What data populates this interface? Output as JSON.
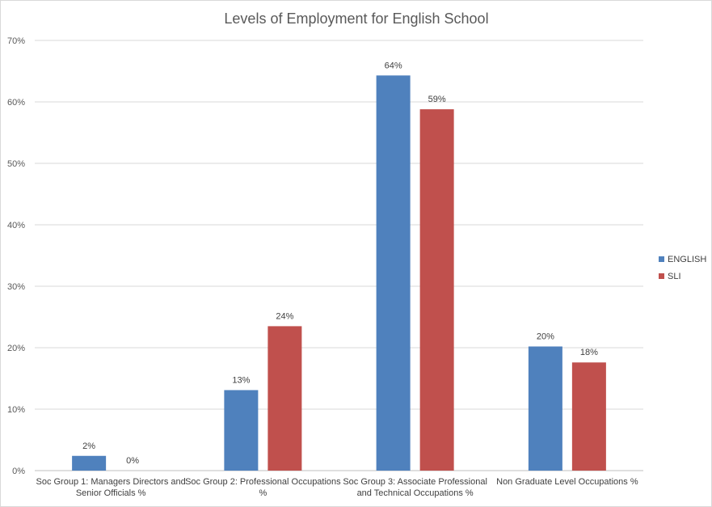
{
  "chart_data": {
    "type": "bar",
    "title": "Levels of Employment for English School",
    "xlabel": "",
    "ylabel": "",
    "ylim": [
      0,
      70
    ],
    "yticks": [
      0,
      10,
      20,
      30,
      40,
      50,
      60,
      70
    ],
    "ytick_labels": [
      "0%",
      "10%",
      "20%",
      "30%",
      "40%",
      "50%",
      "60%",
      "70%"
    ],
    "grid": true,
    "legend_position": "right",
    "categories": [
      [
        "Soc Group 1: Managers Directors and",
        "Senior Officials %"
      ],
      [
        "Soc Group 2: Professional Occupations",
        "%"
      ],
      [
        "Soc Group 3: Associate Professional",
        "and Technical Occupations %"
      ],
      [
        "Non Graduate Level Occupations %"
      ]
    ],
    "series": [
      {
        "name": "ENGLISH",
        "color": "#4f81bd",
        "values": [
          2.4,
          13.1,
          64.3,
          20.2
        ],
        "labels": [
          "2%",
          "13%",
          "64%",
          "20%"
        ]
      },
      {
        "name": "SLI",
        "color": "#c0504d",
        "values": [
          0,
          23.5,
          58.8,
          17.6
        ],
        "labels": [
          "0%",
          "24%",
          "59%",
          "18%"
        ]
      }
    ]
  }
}
